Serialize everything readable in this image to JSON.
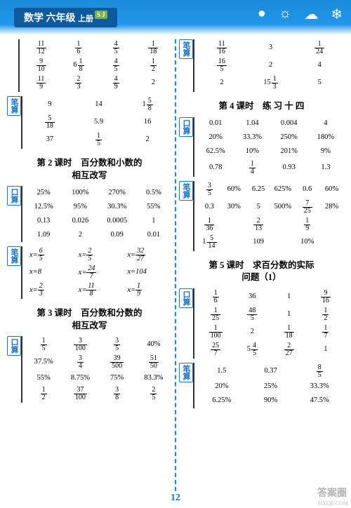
{
  "header": {
    "subject": "数学",
    "grade": "六年级",
    "volume": "上册",
    "badge": "S J",
    "icons": [
      "●",
      "☼",
      "☁",
      "❄"
    ]
  },
  "left": {
    "block1": {
      "label": "",
      "rows": [
        [
          {
            "f": [
              11,
              12
            ]
          },
          {
            "f": [
              1,
              6
            ]
          },
          {
            "f": [
              4,
              5
            ]
          },
          {
            "f": [
              1,
              18
            ]
          }
        ],
        [
          {
            "f": [
              9,
              10
            ]
          },
          {
            "m": [
              6,
              1,
              8
            ]
          },
          {
            "f": [
              4,
              5
            ]
          },
          {
            "f": [
              1,
              2
            ]
          }
        ],
        [
          {
            "f": [
              11,
              9
            ]
          },
          {
            "f": [
              2,
              3
            ]
          },
          {
            "f": [
              4,
              9
            ]
          },
          {
            "t": "2"
          }
        ]
      ]
    },
    "block2": {
      "label": "笔算",
      "rows": [
        [
          {
            "t": "9"
          },
          {
            "t": "14"
          },
          {
            "m": [
              1,
              5,
              8
            ]
          }
        ],
        [
          {
            "f": [
              5,
              18
            ]
          },
          {
            "t": "5.9"
          },
          {
            "t": "16"
          }
        ],
        [
          {
            "t": "37"
          },
          {
            "f": [
              1,
              5
            ]
          },
          {
            "t": "2"
          }
        ]
      ]
    },
    "title2": "第 2 课时　百分数和小数的\n相互改写",
    "block3": {
      "label": "口算",
      "rows": [
        [
          {
            "t": "25%"
          },
          {
            "t": "100%"
          },
          {
            "t": "270%"
          },
          {
            "t": "0.5%"
          }
        ],
        [
          {
            "t": "12.5%"
          },
          {
            "t": "95%"
          },
          {
            "t": "30.3%"
          },
          {
            "t": "55%"
          }
        ],
        [
          {
            "t": "0.13"
          },
          {
            "t": "0.026"
          },
          {
            "t": "0.0005"
          },
          {
            "t": "1"
          }
        ],
        [
          {
            "t": "1.09"
          },
          {
            "t": "2"
          },
          {
            "t": "0.09"
          },
          {
            "t": "0.01"
          }
        ]
      ]
    },
    "block4": {
      "label": "笔算",
      "rows": [
        [
          {
            "e": [
              "x=",
              6,
              5
            ]
          },
          {
            "e": [
              "x=",
              2,
              5
            ]
          },
          {
            "e": [
              "x=",
              32,
              27
            ]
          }
        ],
        [
          {
            "t": "x=8"
          },
          {
            "e": [
              "x=",
              24,
              7
            ]
          },
          {
            "t": "x=104"
          }
        ],
        [
          {
            "e": [
              "x=",
              2,
              3
            ]
          },
          {
            "e": [
              "x=",
              11,
              8
            ]
          },
          {
            "e": [
              "x=",
              1,
              9
            ]
          }
        ]
      ]
    },
    "title3": "第 3 课时　百分数和分数的\n相互改写",
    "block5": {
      "label": "口算",
      "rows": [
        [
          {
            "f": [
              1,
              5
            ]
          },
          {
            "f": [
              3,
              100
            ]
          },
          {
            "f": [
              3,
              5
            ]
          },
          {
            "t": "40%"
          }
        ],
        [
          {
            "t": "37.5%"
          },
          {
            "f": [
              3,
              4
            ]
          },
          {
            "f": [
              39,
              500
            ]
          },
          {
            "f": [
              51,
              50
            ]
          }
        ],
        [
          {
            "t": "55%"
          },
          {
            "t": "8.75%"
          },
          {
            "t": "75%"
          },
          {
            "t": "83.3%"
          }
        ],
        [
          {
            "f": [
              1,
              2
            ]
          },
          {
            "f": [
              37,
              100
            ]
          },
          {
            "f": [
              3,
              8
            ]
          },
          {
            "f": [
              2,
              5
            ]
          }
        ]
      ]
    }
  },
  "right": {
    "block1": {
      "label": "笔算",
      "rows": [
        [
          {
            "f": [
              11,
              16
            ]
          },
          {
            "t": "3"
          },
          {
            "f": [
              1,
              24
            ]
          }
        ],
        [
          {
            "f": [
              16,
              5
            ]
          },
          {
            "t": "2"
          },
          {
            "t": "4"
          }
        ],
        [
          {
            "t": "2"
          },
          {
            "m": [
              15,
              1,
              3
            ]
          },
          {
            "t": "5"
          }
        ]
      ]
    },
    "title4": "第 4 课时　练 习 十 四",
    "block2": {
      "label": "口算",
      "rows": [
        [
          {
            "t": "0.01"
          },
          {
            "t": "1.04"
          },
          {
            "t": "0.004"
          },
          {
            "t": "4"
          }
        ],
        [
          {
            "t": "20%"
          },
          {
            "t": "33.3%"
          },
          {
            "t": "250%"
          },
          {
            "t": "180%"
          }
        ],
        [
          {
            "t": "62.5%"
          },
          {
            "t": "10%"
          },
          {
            "t": "201%"
          },
          {
            "t": "9%"
          }
        ],
        [
          {
            "t": "0.78"
          },
          {
            "f": [
              1,
              4
            ]
          },
          {
            "t": "0.93"
          },
          {
            "t": "1.3"
          }
        ]
      ]
    },
    "block3": {
      "label": "笔算",
      "rows": [
        [
          {
            "f": [
              3,
              5
            ]
          },
          {
            "t": "60%"
          },
          {
            "t": "6.25"
          },
          {
            "t": "625%"
          },
          {
            "t": "0.6"
          },
          {
            "t": "60%"
          }
        ],
        [
          {
            "t": "0.3"
          },
          {
            "t": "30%"
          },
          {
            "t": "5"
          },
          {
            "t": "500%"
          },
          {
            "f": [
              7,
              25
            ]
          },
          {
            "t": "28%"
          }
        ],
        [
          {
            "f": [
              1,
              36
            ]
          },
          {
            "t": ""
          },
          {
            "f": [
              2,
              13
            ]
          },
          {
            "t": ""
          },
          {
            "f": [
              1,
              9
            ]
          },
          {
            "t": ""
          }
        ],
        [
          {
            "m": [
              1,
              5,
              14
            ]
          },
          {
            "t": ""
          },
          {
            "t": "109"
          },
          {
            "t": ""
          },
          {
            "t": "10%"
          },
          {
            "t": ""
          }
        ]
      ]
    },
    "title5": "第 5 课时　求百分数的实际\n问题（1）",
    "block4": {
      "label": "口算",
      "rows": [
        [
          {
            "f": [
              1,
              6
            ]
          },
          {
            "t": "36"
          },
          {
            "t": "1"
          },
          {
            "f": [
              9,
              16
            ]
          }
        ],
        [
          {
            "f": [
              1,
              25
            ]
          },
          {
            "f": [
              48,
              5
            ]
          },
          {
            "t": "1"
          },
          {
            "f": [
              1,
              2
            ]
          }
        ],
        [
          {
            "f": [
              1,
              100
            ]
          },
          {
            "t": "2"
          },
          {
            "f": [
              1,
              18
            ]
          },
          {
            "f": [
              1,
              7
            ]
          }
        ],
        [
          {
            "f": [
              25,
              7
            ]
          },
          {
            "m": [
              5,
              4,
              5
            ]
          },
          {
            "f": [
              2,
              27
            ]
          },
          {
            "t": "1"
          }
        ]
      ]
    },
    "block5": {
      "label": "笔算",
      "rows": [
        [
          {
            "t": "1.5"
          },
          {
            "t": "0.37"
          },
          {
            "f": [
              8,
              5
            ]
          }
        ],
        [
          {
            "t": "20%"
          },
          {
            "t": "25%"
          },
          {
            "t": "33.3%"
          }
        ],
        [
          {
            "t": "6.25%"
          },
          {
            "t": "90%"
          },
          {
            "t": "47.5%"
          }
        ]
      ]
    }
  },
  "page": "12",
  "watermark": "答案圈",
  "watermark2": "MXQE.COM"
}
